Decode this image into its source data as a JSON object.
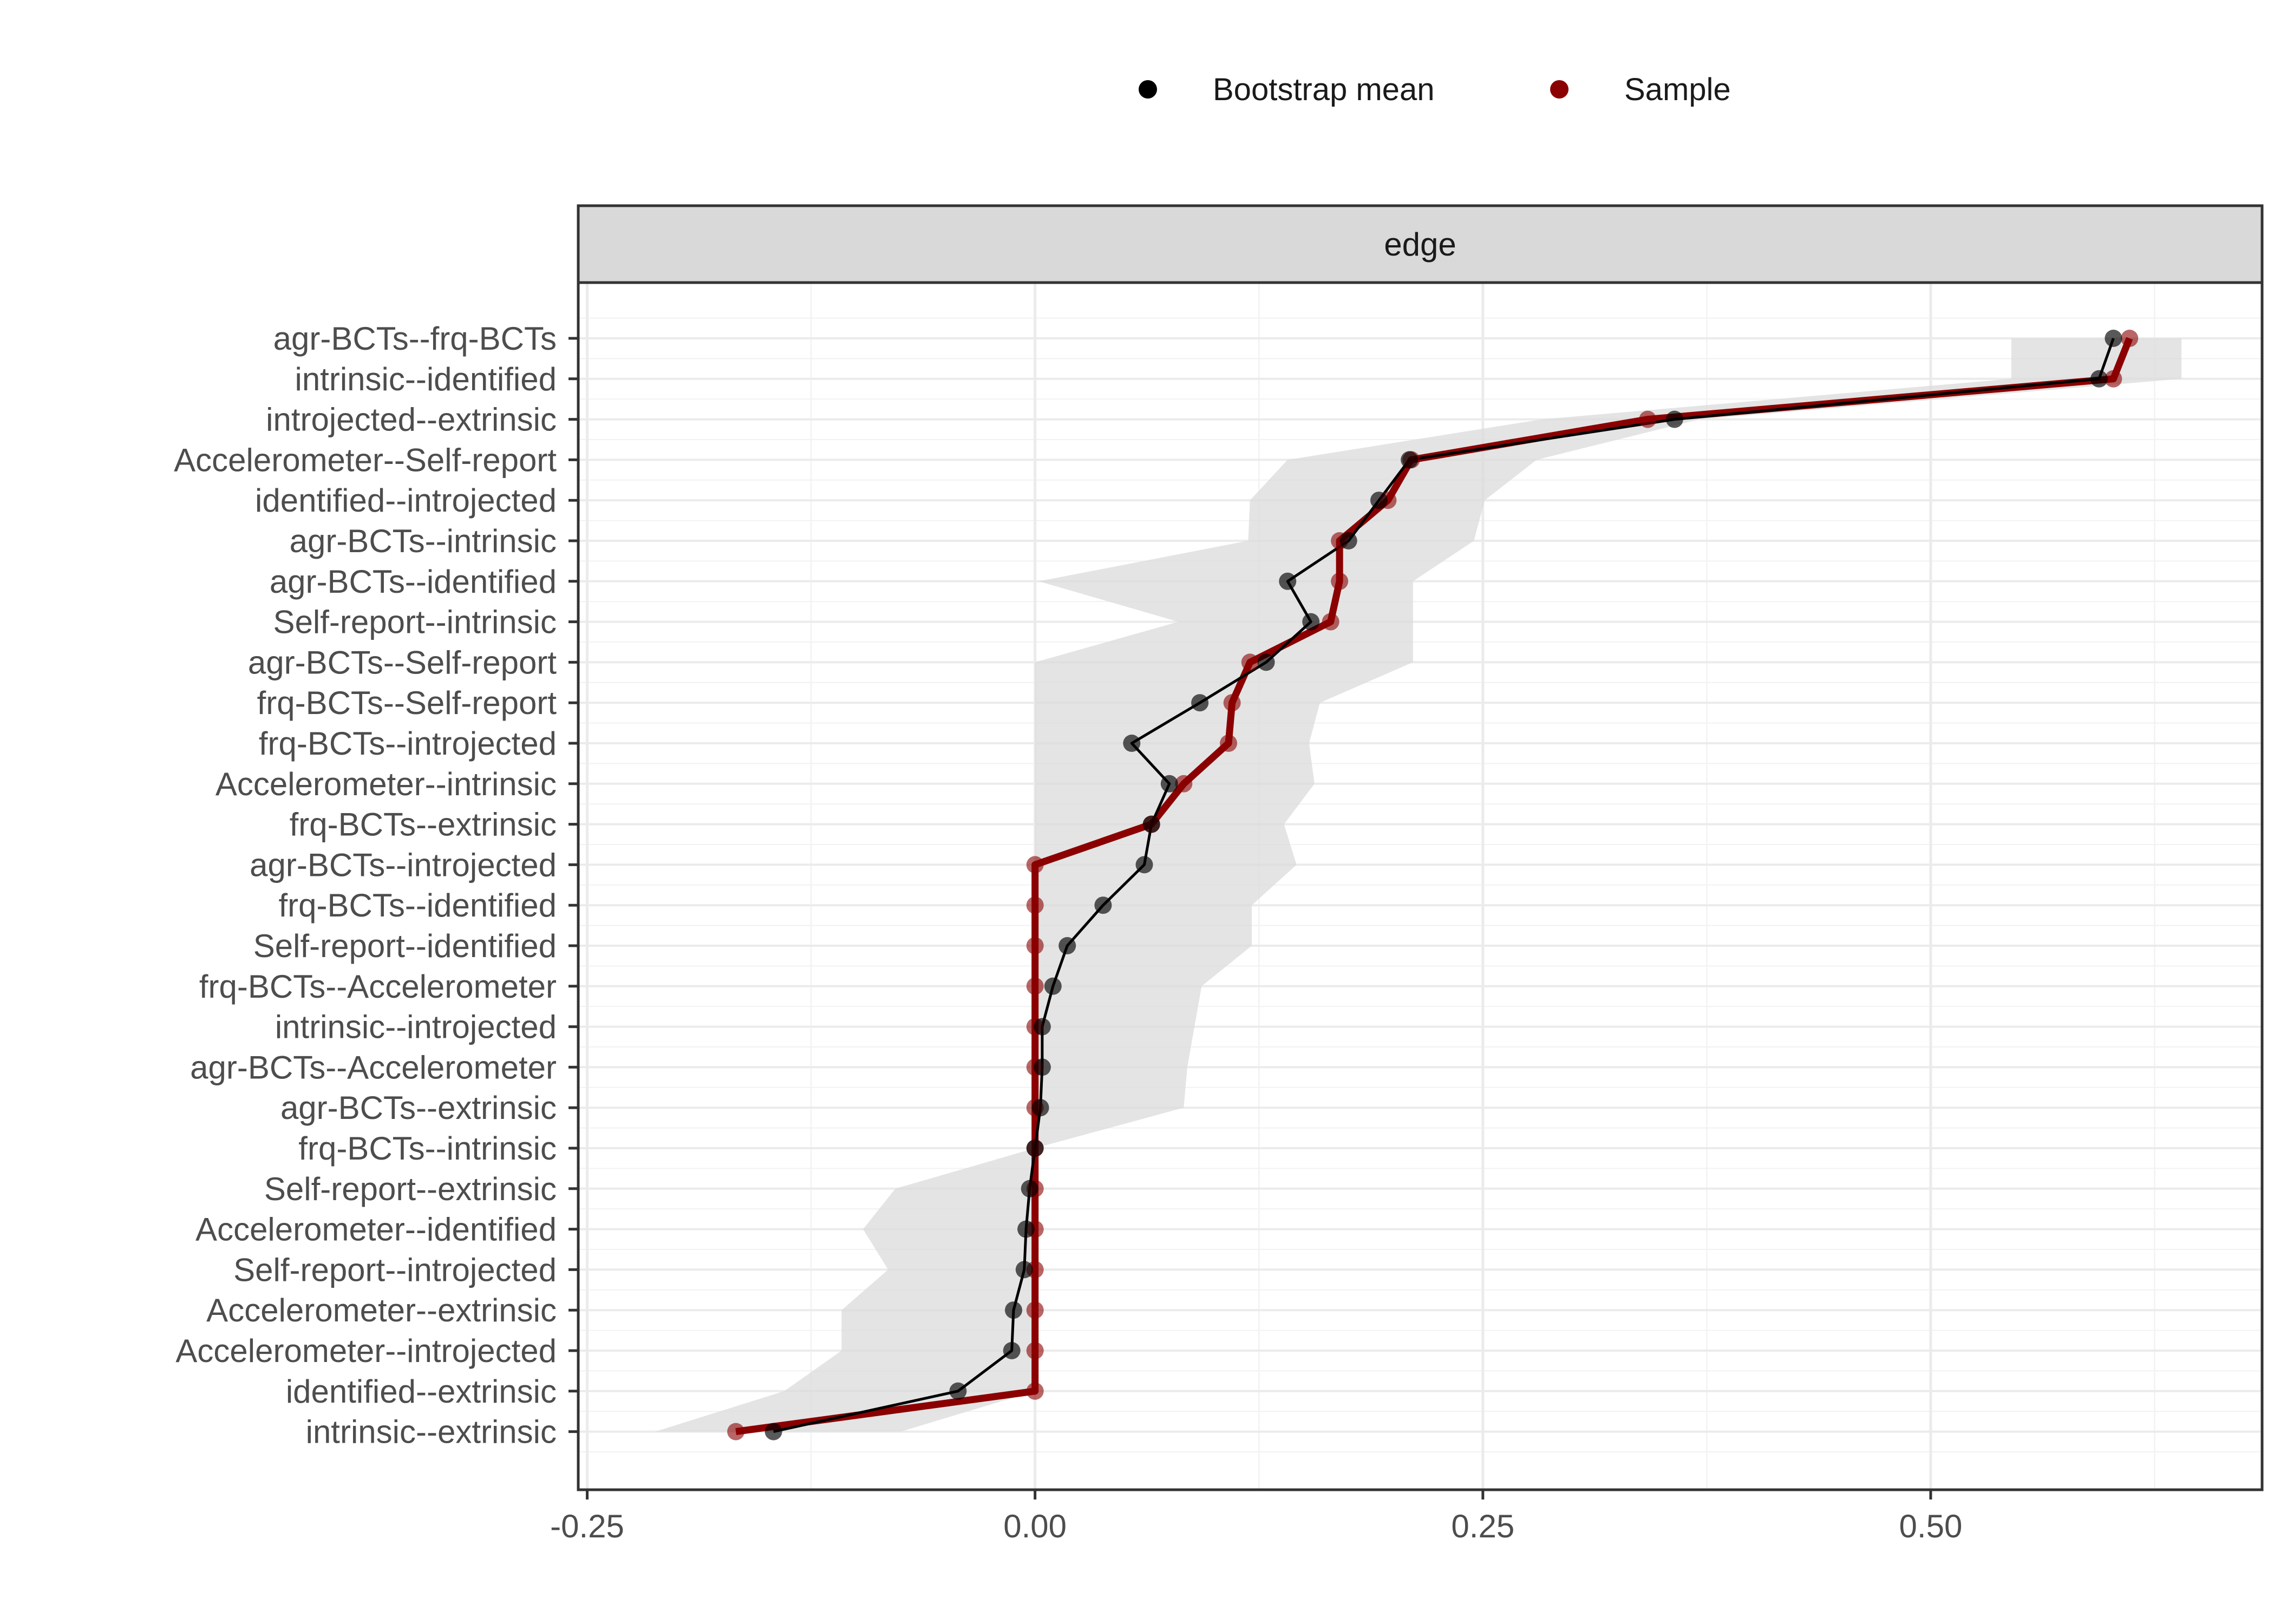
{
  "legend": {
    "items": [
      {
        "label": "Bootstrap mean",
        "color": "#000000"
      },
      {
        "label": "Sample",
        "color": "#8B0000"
      }
    ],
    "placement": "top"
  },
  "facet": {
    "label": "edge"
  },
  "chart_data": {
    "type": "line",
    "orientation": "horizontal",
    "facet": "edge",
    "categories": [
      "agr-BCTs--frq-BCTs",
      "intrinsic--identified",
      "introjected--extrinsic",
      "Accelerometer--Self-report",
      "identified--introjected",
      "agr-BCTs--intrinsic",
      "agr-BCTs--identified",
      "Self-report--intrinsic",
      "agr-BCTs--Self-report",
      "frq-BCTs--Self-report",
      "frq-BCTs--introjected",
      "Accelerometer--intrinsic",
      "frq-BCTs--extrinsic",
      "agr-BCTs--introjected",
      "frq-BCTs--identified",
      "Self-report--identified",
      "frq-BCTs--Accelerometer",
      "intrinsic--introjected",
      "agr-BCTs--Accelerometer",
      "agr-BCTs--extrinsic",
      "frq-BCTs--intrinsic",
      "Self-report--extrinsic",
      "Accelerometer--identified",
      "Self-report--introjected",
      "Accelerometer--extrinsic",
      "Accelerometer--introjected",
      "identified--extrinsic",
      "intrinsic--extrinsic"
    ],
    "series": [
      {
        "name": "Bootstrap mean",
        "color": "#000000",
        "values": [
          0.602,
          0.594,
          0.357,
          0.209,
          0.192,
          0.175,
          0.141,
          0.154,
          0.129,
          0.092,
          0.054,
          0.075,
          0.065,
          0.061,
          0.038,
          0.018,
          0.01,
          0.004,
          0.004,
          0.003,
          0.0,
          -0.003,
          -0.005,
          -0.006,
          -0.012,
          -0.013,
          -0.043,
          -0.146
        ]
      },
      {
        "name": "Sample",
        "color": "#8B0000",
        "values": [
          0.611,
          0.602,
          0.342,
          0.21,
          0.197,
          0.17,
          0.17,
          0.165,
          0.12,
          0.11,
          0.108,
          0.083,
          0.065,
          0.0,
          0.0,
          0.0,
          0.0,
          0.0,
          0.0,
          0.0,
          0.0,
          0.0,
          0.0,
          0.0,
          0.0,
          0.0,
          0.0,
          -0.167
        ]
      }
    ],
    "ci_band": {
      "color": "#d9d9d9",
      "lower": [
        0.545,
        0.545,
        0.283,
        0.141,
        0.12,
        0.119,
        0.002,
        0.08,
        0.0,
        0.0,
        0.0,
        0.0,
        0.0,
        0.0,
        0.0,
        0.0,
        0.0,
        0.0,
        0.0,
        0.0,
        0.0,
        -0.078,
        -0.096,
        -0.082,
        -0.108,
        -0.108,
        -0.14,
        -0.212
      ],
      "upper": [
        0.64,
        0.64,
        0.371,
        0.28,
        0.251,
        0.245,
        0.211,
        0.211,
        0.211,
        0.159,
        0.153,
        0.156,
        0.139,
        0.146,
        0.121,
        0.121,
        0.093,
        0.089,
        0.085,
        0.083,
        0.0,
        0.0,
        0.0,
        0.0,
        0.0,
        0.0,
        0.0,
        -0.075
      ]
    },
    "x_ticks": [
      -0.25,
      0.0,
      0.25,
      0.5
    ],
    "x_tick_labels": [
      "-0.25",
      "0.00",
      "0.25",
      "0.50"
    ],
    "xlim": [
      -0.255,
      0.685
    ],
    "grid": true,
    "xlabel": "",
    "ylabel": ""
  }
}
